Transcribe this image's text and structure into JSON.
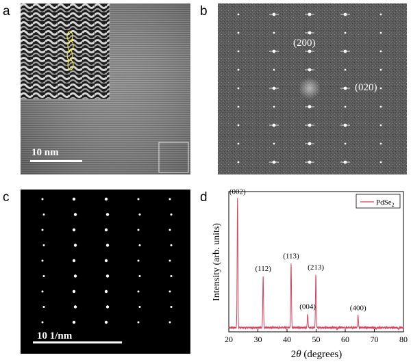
{
  "panels": {
    "a": {
      "letter": "a",
      "scale_bar_label": "10 nm"
    },
    "b": {
      "letter": "b",
      "spot_labels": [
        "(200)",
        "(020)"
      ]
    },
    "c": {
      "letter": "c",
      "scale_bar_label": "10 1/nm"
    },
    "d": {
      "letter": "d"
    }
  },
  "chart_data": {
    "type": "line",
    "xlabel_prefix": "2",
    "xlabel_symbol": "θ",
    "xlabel_suffix": " (degrees)",
    "ylabel": "Intensity (arb. units)",
    "xlim": [
      20,
      80
    ],
    "xticks": [
      20,
      30,
      40,
      50,
      60,
      70,
      80
    ],
    "yticks_shown": false,
    "grid": false,
    "legend_position": "top-right",
    "legend": [
      {
        "base": "PdSe",
        "sub": "2"
      }
    ],
    "series_color": "#d9425a",
    "baseline": 0.03,
    "peaks": [
      {
        "label": "(002)",
        "x": 23.0,
        "y": 0.95
      },
      {
        "label": "(112)",
        "x": 31.8,
        "y": 0.4
      },
      {
        "label": "(113)",
        "x": 41.4,
        "y": 0.49
      },
      {
        "label": "(004)",
        "x": 47.1,
        "y": 0.13
      },
      {
        "label": "(213)",
        "x": 49.9,
        "y": 0.41
      },
      {
        "label": "(400)",
        "x": 64.4,
        "y": 0.12
      },
      {
        "x": 57.2,
        "y": 0.02
      },
      {
        "x": 70.6,
        "y": 0.02
      },
      {
        "x": 78.3,
        "y": 0.015
      }
    ]
  }
}
